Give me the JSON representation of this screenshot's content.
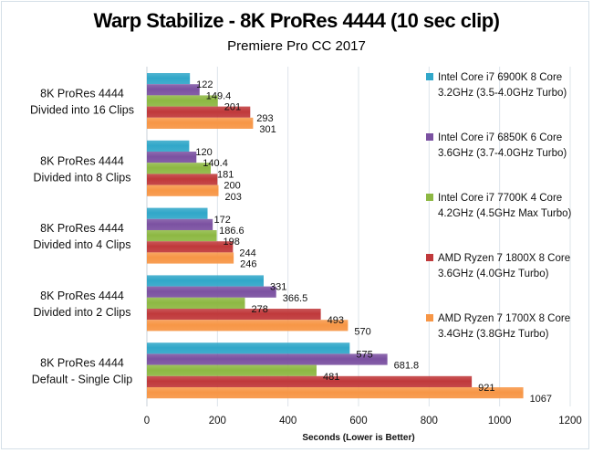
{
  "chart_data": {
    "type": "bar",
    "orientation": "horizontal",
    "title": "Warp Stabilize - 8K ProRes 4444 (10 sec clip)",
    "subtitle": "Premiere Pro CC 2017",
    "xlabel": "Seconds  (Lower is Better)",
    "ylabel": "",
    "xlim": [
      0,
      1200
    ],
    "xticks": [
      "0",
      "200",
      "400",
      "600",
      "800",
      "1000",
      "1200"
    ],
    "xtick_values": [
      0,
      200,
      400,
      600,
      800,
      1000,
      1200
    ],
    "grid": true,
    "legend_position": "right",
    "categories": [
      [
        "8K ProRes 4444",
        "Divided into 16 Clips"
      ],
      [
        "8K ProRes 4444",
        "Divided into 8 Clips"
      ],
      [
        "8K ProRes 4444",
        "Divided into 4 Clips"
      ],
      [
        "8K ProRes 4444",
        "Divided into 2 Clips"
      ],
      [
        "8K ProRes 4444",
        "Default - Single Clip"
      ]
    ],
    "series": [
      {
        "name": [
          "Intel Core i7 6900K 8 Core",
          "3.2GHz (3.5-4.0GHz Turbo)"
        ],
        "color": "#31a7c9",
        "values": [
          122,
          120,
          172,
          331,
          575
        ],
        "labels": [
          "122",
          "120",
          "172",
          "331",
          "575"
        ]
      },
      {
        "name": [
          "Intel Core i7 6850K 6 Core",
          "3.6GHz (3.7-4.0GHz Turbo)"
        ],
        "color": "#7b51a1",
        "values": [
          149.4,
          140.4,
          186.6,
          366.5,
          681.8
        ],
        "labels": [
          "149.4",
          "140.4",
          "186.6",
          "366.5",
          "681.8"
        ]
      },
      {
        "name": [
          "Intel Core i7 7700K 4 Core",
          "4.2GHz (4.5GHz Max Turbo)"
        ],
        "color": "#8db843",
        "values": [
          201,
          181,
          198,
          278,
          481
        ],
        "labels": [
          "201",
          "181",
          "198",
          "278",
          "481"
        ]
      },
      {
        "name": [
          "AMD Ryzen 7 1800X 8 Core",
          "3.6GHz (4.0GHz Turbo)"
        ],
        "color": "#c0393b",
        "values": [
          293,
          200,
          244,
          493,
          921
        ],
        "labels": [
          "293",
          "200",
          "244",
          "493",
          "921"
        ]
      },
      {
        "name": [
          "AMD Ryzen 7 1700X 8 Core",
          "3.4GHz (3.8GHz Turbo)"
        ],
        "color": "#f79646",
        "values": [
          301,
          203,
          246,
          570,
          1067
        ],
        "labels": [
          "301",
          "203",
          "246",
          "570",
          "1067"
        ]
      }
    ]
  }
}
